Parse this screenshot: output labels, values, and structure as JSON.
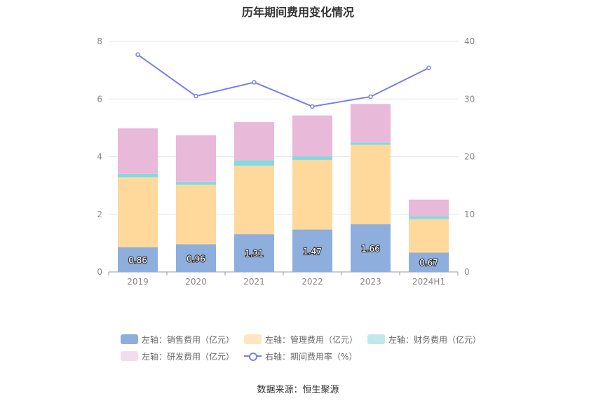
{
  "chart_data": {
    "type": "bar",
    "title": "历年期间费用变化情况",
    "categories": [
      "2019",
      "2020",
      "2021",
      "2022",
      "2023",
      "2024H1"
    ],
    "left_axis": {
      "ylim": [
        0,
        8
      ],
      "ticks": [
        "0",
        "2",
        "4",
        "6",
        "8"
      ]
    },
    "right_axis": {
      "ylim": [
        0,
        40
      ],
      "ticks": [
        "0",
        "10",
        "20",
        "30",
        "40"
      ]
    },
    "grid": true,
    "stacked": true,
    "series": [
      {
        "name": "左轴：销售费用（亿元）",
        "axis": "left",
        "kind": "bar",
        "values": [
          0.86,
          0.96,
          1.31,
          1.47,
          1.66,
          0.67
        ],
        "color": "#8eaedd",
        "labels": true
      },
      {
        "name": "左轴：管理费用（亿元）",
        "axis": "left",
        "kind": "bar",
        "values": [
          2.42,
          2.06,
          2.37,
          2.42,
          2.75,
          1.16
        ],
        "color": "#ffd99b"
      },
      {
        "name": "左轴：财务费用（亿元）",
        "axis": "left",
        "kind": "bar",
        "values": [
          0.13,
          0.1,
          0.19,
          0.12,
          0.08,
          0.11
        ],
        "color": "#86d8dc"
      },
      {
        "name": "左轴：研发费用（亿元）",
        "axis": "left",
        "kind": "bar",
        "values": [
          1.57,
          1.62,
          1.33,
          1.42,
          1.34,
          0.57
        ],
        "color": "#e8b9d9"
      },
      {
        "name": "右轴：期间费用率（%）",
        "axis": "right",
        "kind": "line",
        "values": [
          37.7,
          30.5,
          32.9,
          28.7,
          30.4,
          35.4
        ],
        "color": "#7b7fe8"
      }
    ],
    "legend": {
      "placement": "bottom",
      "legend_swatch_colors": [
        "#8eaedd",
        "#ffe5c0",
        "#bfe9eb",
        "#f3dcec"
      ]
    },
    "source": "数据来源：恒生聚源"
  }
}
